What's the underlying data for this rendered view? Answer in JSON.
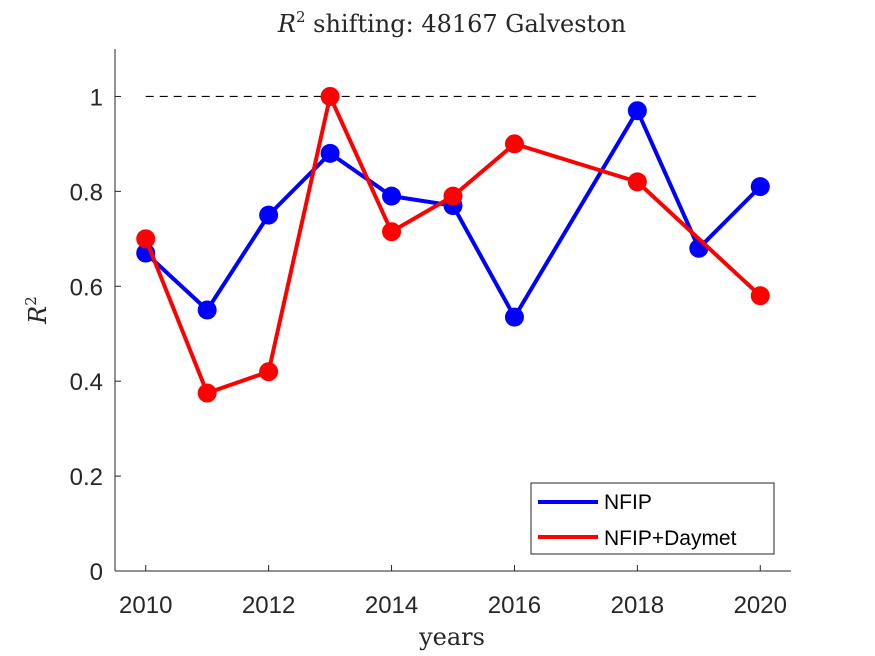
{
  "chart_data": {
    "type": "line",
    "title_main": "R",
    "title_sup": "2",
    "title_rest": " shifting: 48167 Galveston",
    "xlabel": "years",
    "ylabel_main": "R",
    "ylabel_sup": "2",
    "xlim": [
      2009.5,
      2020.5
    ],
    "ylim": [
      0,
      1.1
    ],
    "xticks": [
      2010,
      2012,
      2014,
      2016,
      2018,
      2020
    ],
    "xtick_labels": [
      "2010",
      "2012",
      "2014",
      "2016",
      "2018",
      "2020"
    ],
    "yticks": [
      0,
      0.2,
      0.4,
      0.6,
      0.8,
      1
    ],
    "ytick_labels": [
      "0",
      "0.2",
      "0.4",
      "0.6",
      "0.8",
      "1"
    ],
    "reference_line": {
      "y": 1,
      "x_start": 2010,
      "x_end": 2020,
      "style": "dashed",
      "color": "#000000"
    },
    "series": [
      {
        "name": "NFIP",
        "color": "#0000ff",
        "x": [
          2010,
          2011,
          2012,
          2013,
          2014,
          2015,
          2016,
          2018,
          2019,
          2020
        ],
        "values": [
          0.67,
          0.55,
          0.75,
          0.88,
          0.79,
          0.77,
          0.535,
          0.97,
          0.68,
          0.81
        ]
      },
      {
        "name": "NFIP+Daymet",
        "color": "#ff0000",
        "x": [
          2010,
          2011,
          2012,
          2013,
          2014,
          2015,
          2016,
          2018,
          2020
        ],
        "values": [
          0.7,
          0.375,
          0.42,
          1.0,
          0.715,
          0.79,
          0.9,
          0.82,
          0.58
        ]
      }
    ],
    "legend": {
      "entries": [
        "NFIP",
        "NFIP+Daymet"
      ],
      "position": "bottom-right"
    },
    "grid": false
  }
}
